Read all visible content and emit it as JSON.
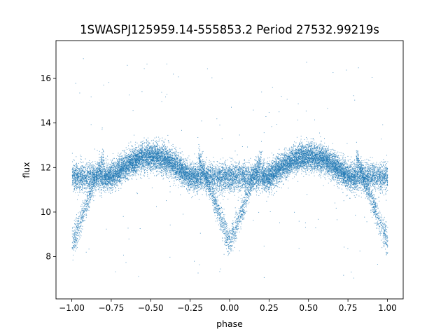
{
  "chart_data": {
    "type": "scatter",
    "title": "1SWASPJ125959.14-555853.2 Period 27532.99219s",
    "xlabel": "phase",
    "ylabel": "flux",
    "xlim": [
      -1.1,
      1.1
    ],
    "ylim": [
      6.1,
      17.7
    ],
    "x_ticks": [
      -1.0,
      -0.75,
      -0.5,
      -0.25,
      0.0,
      0.25,
      0.5,
      0.75,
      1.0
    ],
    "x_tick_labels": [
      "−1.00",
      "−0.75",
      "−0.50",
      "−0.25",
      "0.00",
      "0.25",
      "0.50",
      "0.75",
      "1.00"
    ],
    "y_ticks": [
      8,
      10,
      12,
      14,
      16
    ],
    "y_tick_labels": [
      "8",
      "10",
      "12",
      "14",
      "16"
    ],
    "grid": false,
    "legend": "none",
    "marker_color": "#1f77b4",
    "marker_size": 1,
    "series": [
      {
        "x_range": [
          -1.0,
          1.0
        ],
        "baseline_flux": 11.6,
        "max_flux": 12.5,
        "primary_eclipse_flux": 8.6,
        "eclipse_centers": [
          -1.0,
          0.0,
          1.0
        ],
        "max_centers": [
          -0.5,
          0.5
        ],
        "scatter_flux": 0.3,
        "approx_point_count": 20000
      }
    ]
  }
}
